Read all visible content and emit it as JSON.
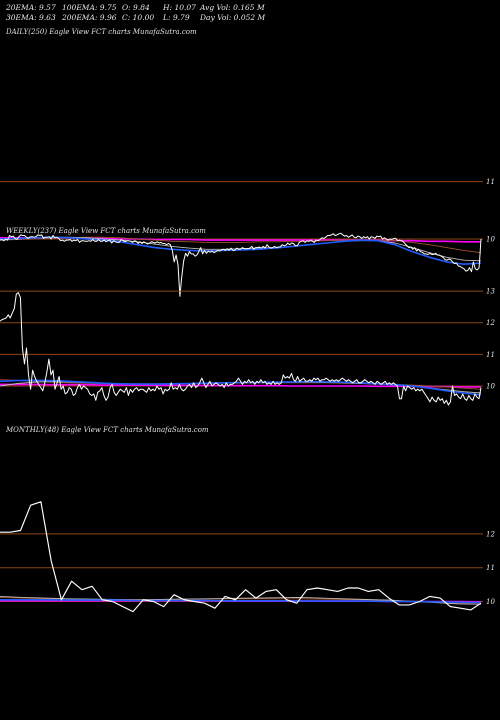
{
  "header": {
    "row1": [
      "20EMA: 9.57",
      "100EMA: 9.75",
      "O: 9.84",
      "H: 10.07",
      "Avg Vol: 0.165 M"
    ],
    "row2": [
      "30EMA: 9.63",
      "200EMA: 9.96",
      "C: 10.00",
      "L: 9.79",
      "Day Vol: 0.052  M"
    ]
  },
  "colors": {
    "background": "#000000",
    "price": "#ffffff",
    "grid": "#8b4513",
    "ema_blue": "#1f5bff",
    "ema_magenta": "#ff00ff",
    "ema_brown": "#a0522d",
    "ema_gray": "#bdbdbd"
  },
  "chart_data": [
    {
      "type": "line",
      "title": "DAILY(250) Eagle  View  FCT charts MunafaSutra.com",
      "yticks": [
        11,
        10
      ],
      "ylim": [
        9.25,
        11.55
      ],
      "x": "session index 0–250",
      "series": [
        {
          "color": "#ffffff",
          "values": [
            9.98,
            9.99,
            9.97,
            10.0,
            9.98,
            10.06,
            10.04,
            10.05,
            10.01,
            9.99,
            10.04,
            10.07,
            10.06,
            10.06,
            10.03,
            10.01,
            10.04,
            10.04,
            10.03,
            10.04,
            10.07,
            10.06,
            10.07,
            10.01,
            10.03,
            10.03,
            10.04,
            10.0,
            10.06,
            10.02,
            10.03,
            10.01,
            9.97,
            9.98,
            9.96,
            9.98,
            9.98,
            9.99,
            9.96,
            9.98,
            9.97,
            9.99,
            9.94,
            9.97,
            9.97,
            9.96,
            9.96,
            9.97,
            9.96,
            9.99,
            9.96,
            9.96,
            9.99,
            9.96,
            9.96,
            9.98,
            9.95,
            9.97,
            9.98,
            9.93,
            9.97,
            9.95,
            9.94,
            9.94,
            9.99,
            9.97,
            9.95,
            9.97,
            9.97,
            9.96,
            9.94,
            9.97,
            9.96,
            9.92,
            9.95,
            9.92,
            9.95,
            9.93,
            9.91,
            9.93,
            9.95,
            9.94,
            9.93,
            9.95,
            9.93,
            9.94,
            9.92,
            9.92,
            9.9,
            9.92,
            9.9,
            9.8,
            9.6,
            9.72,
            9.55,
            9.0,
            9.35,
            9.62,
            9.75,
            9.7,
            9.78,
            9.74,
            9.74,
            9.7,
            9.72,
            9.78,
            9.85,
            9.74,
            9.8,
            9.75,
            9.79,
            9.77,
            9.79,
            9.76,
            9.78,
            9.8,
            9.79,
            9.81,
            9.82,
            9.8,
            9.83,
            9.8,
            9.84,
            9.8,
            9.8,
            9.84,
            9.82,
            9.82,
            9.85,
            9.83,
            9.83,
            9.83,
            9.84,
            9.87,
            9.82,
            9.85,
            9.85,
            9.86,
            9.84,
            9.87,
            9.84,
            9.9,
            9.86,
            9.84,
            9.85,
            9.87,
            9.85,
            9.86,
            9.86,
            9.9,
            9.88,
            9.89,
            9.93,
            9.9,
            9.93,
            9.92,
            9.88,
            9.88,
            9.94,
            9.96,
            9.97,
            9.94,
            9.97,
            9.96,
            9.98,
            9.96,
            9.94,
            9.98,
            9.97,
            9.99,
            10.02,
            10.01,
            10.03,
            10.06,
            10.06,
            10.07,
            10.09,
            10.06,
            10.07,
            10.09,
            10.1,
            10.07,
            10.05,
            10.06,
            10.03,
            10.05,
            10.07,
            10.03,
            10.02,
            10.05,
            10.04,
            10.01,
            10.04,
            10.02,
            10.04,
            10.0,
            10.04,
            10.03,
            10.01,
            10.05,
            10.04,
            10.05,
            10.0,
            10.02,
            10.0,
            9.98,
            10.0,
            9.99,
            10.01,
            10.01,
            9.97,
            9.98,
            9.97,
            9.95,
            9.91,
            9.88,
            9.85,
            9.86,
            9.82,
            9.85,
            9.79,
            9.82,
            9.78,
            9.77,
            9.74,
            9.74,
            9.73,
            9.75,
            9.73,
            9.73,
            9.75,
            9.72,
            9.72,
            9.7,
            9.68,
            9.64,
            9.63,
            9.65,
            9.64,
            9.6,
            9.57,
            9.58,
            9.53,
            9.52,
            9.5,
            9.48,
            9.44,
            9.45,
            9.5,
            9.43,
            9.6,
            9.48,
            9.46,
            9.5,
            10.0
          ]
        },
        {
          "color": "#1f5bff",
          "values": [
            10.0,
            10.01,
            10.02,
            10.03,
            10.02,
            10.0,
            9.98,
            9.95,
            9.9,
            9.85,
            9.82,
            9.8,
            9.79,
            9.8,
            9.81,
            9.82,
            9.84,
            9.87,
            9.9,
            9.93,
            9.96,
            9.98,
            9.97,
            9.9,
            9.78,
            9.68,
            9.6,
            9.56,
            9.58
          ]
        },
        {
          "color": "#bdbdbd",
          "values": [
            9.98,
            10.0,
            10.02,
            10.03,
            10.03,
            10.02,
            10.0,
            9.98,
            9.95,
            9.91,
            9.87,
            9.84,
            9.82,
            9.82,
            9.83,
            9.84,
            9.85,
            9.87,
            9.9,
            9.93,
            9.96,
            9.97,
            9.97,
            9.93,
            9.85,
            9.76,
            9.68,
            9.63,
            9.62
          ]
        },
        {
          "color": "#a0522d",
          "values": [
            9.98,
            9.99,
            10.0,
            10.01,
            10.02,
            10.03,
            10.03,
            10.02,
            10.0,
            9.98,
            9.96,
            9.95,
            9.94,
            9.94,
            9.94,
            9.95,
            9.95,
            9.96,
            9.96,
            9.97,
            9.98,
            9.98,
            9.98,
            9.97,
            9.94,
            9.9,
            9.85,
            9.8,
            9.76
          ]
        },
        {
          "color": "#ff00ff",
          "values": [
            10.02,
            10.02,
            10.02,
            10.02,
            10.02,
            10.01,
            10.01,
            10.0,
            10.0,
            9.99,
            9.99,
            9.99,
            9.98,
            9.98,
            9.98,
            9.98,
            9.98,
            9.98,
            9.98,
            9.98,
            9.98,
            9.98,
            9.98,
            9.97,
            9.97,
            9.96,
            9.96,
            9.95,
            9.95
          ]
        }
      ]
    },
    {
      "type": "line",
      "title": "WEEKLY(237) Eagle  View  FCT charts MunafaSutra.com",
      "yticks": [
        13,
        12,
        11,
        10
      ],
      "ylim": [
        9.4,
        13.35
      ],
      "x": "week index 0–236",
      "series": [
        {
          "color": "#ffffff",
          "values": [
            12.05,
            12.1,
            12.12,
            12.15,
            12.25,
            12.15,
            12.3,
            12.45,
            12.9,
            12.95,
            12.8,
            11.2,
            10.7,
            11.2,
            10.35,
            9.9,
            10.5,
            10.3,
            10.15,
            10.05,
            9.95,
            9.85,
            10.1,
            10.45,
            10.85,
            10.35,
            10.5,
            9.9,
            10.1,
            10.3,
            9.9,
            10.0,
            9.75,
            9.8,
            9.95,
            9.9,
            9.7,
            9.75,
            9.95,
            10.05,
            9.9,
            10.0,
            9.95,
            9.9,
            9.75,
            9.7,
            9.75,
            9.55,
            9.8,
            9.85,
            9.95,
            9.7,
            9.55,
            9.65,
            9.95,
            10.05,
            9.8,
            9.7,
            9.8,
            9.9,
            9.85,
            9.8,
            9.95,
            9.7,
            9.9,
            9.8,
            9.9,
            9.95,
            9.85,
            9.9,
            9.9,
            9.85,
            9.8,
            9.95,
            9.85,
            9.9,
            9.85,
            10.0,
            9.9,
            9.95,
            9.75,
            9.9,
            9.85,
            9.9,
            10.1,
            9.9,
            9.95,
            9.9,
            10.05,
            9.9,
            9.85,
            9.9,
            10.0,
            10.05,
            9.95,
            10.1,
            9.95,
            10.0,
            10.1,
            10.25,
            10.1,
            9.95,
            10.05,
            10.15,
            10.0,
            10.05,
            10.1,
            10.05,
            10.0,
            10.05,
            9.95,
            10.1,
            10.0,
            10.05,
            10.05,
            10.1,
            10.15,
            10.25,
            10.15,
            10.05,
            10.15,
            10.1,
            10.2,
            10.1,
            10.15,
            10.05,
            10.15,
            10.1,
            10.2,
            10.1,
            10.15,
            10.05,
            10.1,
            10.05,
            10.15,
            10.05,
            10.1,
            10.05,
            10.1,
            10.35,
            10.25,
            10.3,
            10.25,
            10.4,
            10.2,
            10.15,
            10.3,
            10.15,
            10.2,
            10.25,
            10.15,
            10.15,
            10.2,
            10.15,
            10.25,
            10.2,
            10.25,
            10.15,
            10.2,
            10.2,
            10.25,
            10.2,
            10.15,
            10.2,
            10.15,
            10.2,
            10.15,
            10.2,
            10.25,
            10.2,
            10.15,
            10.2,
            10.15,
            10.1,
            10.15,
            10.2,
            10.1,
            10.1,
            10.15,
            10.2,
            10.15,
            10.1,
            10.15,
            10.1,
            10.05,
            10.15,
            10.1,
            10.05,
            10.1,
            10.15,
            10.05,
            10.1,
            10.05,
            10.1,
            10.05,
            10.0,
            9.6,
            9.6,
            10.0,
            9.85,
            10.0,
            9.95,
            9.9,
            9.95,
            9.85,
            9.9,
            9.85,
            9.9,
            9.8,
            9.7,
            9.6,
            9.5,
            9.65,
            9.55,
            9.5,
            9.65,
            9.55,
            9.6,
            9.45,
            9.55,
            9.4,
            9.5,
            10.0,
            9.7,
            9.75,
            9.65,
            9.6,
            9.75,
            9.6,
            9.55,
            9.7,
            9.6,
            9.55,
            9.75,
            9.65,
            9.6,
            9.95
          ]
        },
        {
          "color": "#1f5bff",
          "values": [
            10.15,
            10.17,
            10.18,
            10.17,
            10.15,
            10.12,
            10.09,
            10.07,
            10.06,
            10.06,
            10.07,
            10.08,
            10.09,
            10.1,
            10.11,
            10.11,
            10.12,
            10.13,
            10.14,
            10.13,
            10.12,
            10.1,
            10.07,
            10.04,
            10.0,
            9.93,
            9.85,
            9.78,
            9.72
          ]
        },
        {
          "color": "#bdbdbd",
          "values": [
            10.0,
            10.08,
            10.12,
            10.14,
            10.13,
            10.11,
            10.09,
            10.07,
            10.06,
            10.06,
            10.07,
            10.08,
            10.09,
            10.1,
            10.11,
            10.11,
            10.12,
            10.12,
            10.12,
            10.11,
            10.1,
            10.08,
            10.06,
            10.03,
            9.99,
            9.94,
            9.88,
            9.82,
            9.78
          ]
        },
        {
          "color": "#a0522d",
          "values": [
            10.2,
            10.18,
            10.15,
            10.12,
            10.1,
            10.09,
            10.08,
            10.07,
            10.07,
            10.07,
            10.07,
            10.08,
            10.08,
            10.09,
            10.09,
            10.1,
            10.1,
            10.1,
            10.1,
            10.1,
            10.09,
            10.08,
            10.07,
            10.05,
            10.03,
            10.0,
            9.97,
            9.93,
            9.9
          ]
        },
        {
          "color": "#ff00ff",
          "values": [
            10.05,
            10.05,
            10.05,
            10.04,
            10.04,
            10.04,
            10.03,
            10.03,
            10.03,
            10.02,
            10.02,
            10.02,
            10.02,
            10.01,
            10.01,
            10.01,
            10.01,
            10.0,
            10.0,
            10.0,
            10.0,
            10.0,
            9.99,
            9.99,
            9.99,
            9.98,
            9.98,
            9.97,
            9.97
          ]
        }
      ]
    },
    {
      "type": "line",
      "title": "MONTHLY(48) Eagle  View  FCT charts MunafaSutra.com",
      "yticks": [
        12,
        11,
        10
      ],
      "ylim": [
        9.6,
        13.3
      ],
      "x": "month index 0–47",
      "series": [
        {
          "color": "#ffffff",
          "values": [
            12.05,
            12.05,
            12.1,
            12.85,
            12.95,
            11.2,
            10.05,
            10.6,
            10.35,
            10.45,
            10.05,
            10.0,
            9.85,
            9.7,
            10.05,
            10.0,
            9.85,
            10.2,
            10.05,
            10.0,
            9.95,
            9.8,
            10.15,
            10.05,
            10.35,
            10.1,
            10.3,
            10.35,
            10.05,
            9.95,
            10.35,
            10.4,
            10.35,
            10.3,
            10.4,
            10.4,
            10.3,
            10.35,
            10.1,
            9.9,
            9.9,
            10.0,
            10.15,
            10.1,
            9.85,
            9.8,
            9.75,
            9.95
          ]
        },
        {
          "color": "#1f5bff",
          "values": [
            10.05,
            10.05,
            10.05,
            10.04,
            10.04,
            10.04,
            10.03,
            10.03,
            10.03,
            10.03,
            10.02,
            10.02,
            10.02,
            10.02,
            10.01,
            10.01,
            10.01,
            10.0,
            10.0,
            9.99,
            9.98,
            9.97
          ]
        },
        {
          "color": "#bdbdbd",
          "values": [
            10.15,
            10.12,
            10.1,
            10.08,
            10.07,
            10.06,
            10.05,
            10.06,
            10.07,
            10.08,
            10.09,
            10.1,
            10.11,
            10.12,
            10.1,
            10.08,
            10.06,
            10.04,
            10.0,
            9.97,
            9.93,
            9.92
          ]
        },
        {
          "color": "#a0522d",
          "values": [
            10.12,
            10.1,
            10.08,
            10.07,
            10.06,
            10.06,
            10.06,
            10.06,
            10.07,
            10.07,
            10.08,
            10.08,
            10.08,
            10.08,
            10.07,
            10.06,
            10.05,
            10.03,
            10.01,
            9.98,
            9.95,
            9.93
          ]
        },
        {
          "color": "#ff00ff",
          "values": [
            10.02,
            10.02,
            10.02,
            10.02,
            10.02,
            10.02,
            10.02,
            10.02,
            10.02,
            10.02,
            10.01,
            10.01,
            10.01,
            10.01,
            10.01,
            10.01,
            10.01,
            10.0,
            10.0,
            10.0,
            10.0,
            9.99
          ]
        }
      ]
    }
  ]
}
